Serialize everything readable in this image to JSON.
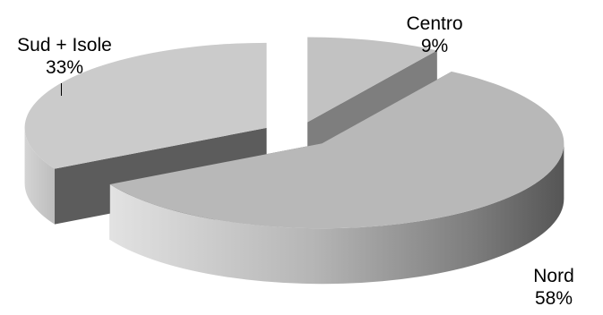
{
  "chart_data": {
    "type": "pie",
    "style": "3d-exploded",
    "categories": [
      "Nord",
      "Centro",
      "Sud + Isole"
    ],
    "values": [
      58,
      9,
      33
    ],
    "data_labels": [
      "58%",
      "9%",
      "33%"
    ],
    "colors": {
      "Nord": "#b8b8b8",
      "Centro": "#c2c2c2",
      "Sud + Isole": "#cbcbcb",
      "cut_face": "#5c5c5c",
      "cut_face_alt": "#7e7e7e"
    },
    "legend": "none",
    "title": ""
  }
}
